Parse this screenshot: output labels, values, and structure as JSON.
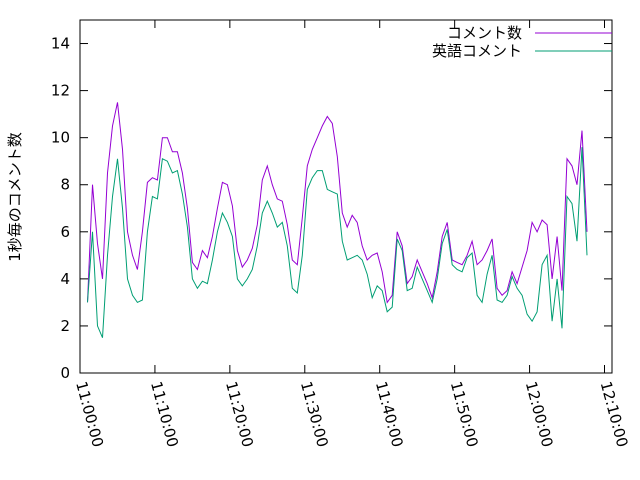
{
  "chart_data": {
    "type": "line",
    "ylabel": "1秒毎のコメント数",
    "x": [
      "11:01:00",
      "11:01:40",
      "11:02:20",
      "11:03:00",
      "11:03:40",
      "11:04:20",
      "11:05:00",
      "11:05:40",
      "11:06:20",
      "11:07:00",
      "11:07:40",
      "11:08:20",
      "11:09:00",
      "11:09:40",
      "11:10:20",
      "11:11:00",
      "11:11:40",
      "11:12:20",
      "11:13:00",
      "11:13:40",
      "11:14:20",
      "11:15:00",
      "11:15:40",
      "11:16:20",
      "11:17:00",
      "11:17:40",
      "11:18:20",
      "11:19:00",
      "11:19:40",
      "11:20:20",
      "11:21:00",
      "11:21:40",
      "11:22:20",
      "11:23:00",
      "11:23:40",
      "11:24:20",
      "11:25:00",
      "11:25:40",
      "11:26:20",
      "11:27:00",
      "11:27:40",
      "11:28:20",
      "11:29:00",
      "11:29:40",
      "11:30:20",
      "11:31:00",
      "11:31:40",
      "11:32:20",
      "11:33:00",
      "11:33:40",
      "11:34:20",
      "11:35:00",
      "11:35:40",
      "11:36:20",
      "11:37:00",
      "11:37:40",
      "11:38:20",
      "11:39:00",
      "11:39:40",
      "11:40:20",
      "11:41:00",
      "11:41:40",
      "11:42:20",
      "11:43:00",
      "11:43:40",
      "11:44:20",
      "11:45:00",
      "11:45:40",
      "11:46:20",
      "11:47:00",
      "11:47:40",
      "11:48:20",
      "11:49:00",
      "11:49:40",
      "11:50:20",
      "11:51:00",
      "11:51:40",
      "11:52:20",
      "11:53:00",
      "11:53:40",
      "11:54:20",
      "11:55:00",
      "11:55:40",
      "11:56:20",
      "11:57:00",
      "11:57:40",
      "11:58:20",
      "11:59:00",
      "11:59:40",
      "12:00:20",
      "12:01:00",
      "12:01:40",
      "12:02:20",
      "12:03:00",
      "12:03:40",
      "12:04:20",
      "12:05:00",
      "12:05:40",
      "12:06:20",
      "12:07:00",
      "12:07:40"
    ],
    "series": [
      {
        "name": "コメント数",
        "color": "#9400d3",
        "values": [
          3.0,
          8.0,
          5.5,
          4.0,
          8.5,
          10.5,
          11.5,
          9.5,
          6.0,
          5.0,
          4.4,
          6.0,
          8.1,
          8.3,
          8.2,
          10.0,
          10.0,
          9.4,
          9.4,
          8.5,
          7.0,
          4.7,
          4.4,
          5.2,
          4.9,
          5.8,
          7.0,
          8.1,
          8.0,
          7.1,
          5.2,
          4.5,
          4.8,
          5.3,
          6.3,
          8.2,
          8.8,
          8.0,
          7.4,
          7.3,
          6.3,
          4.8,
          4.6,
          6.6,
          8.8,
          9.5,
          10.0,
          10.5,
          10.9,
          10.6,
          9.2,
          6.8,
          6.2,
          6.7,
          6.4,
          5.4,
          4.8,
          5.0,
          5.1,
          4.3,
          3.0,
          3.3,
          6.0,
          5.4,
          3.8,
          4.1,
          4.8,
          4.3,
          3.8,
          3.2,
          4.3,
          5.8,
          6.4,
          4.8,
          4.7,
          4.6,
          5.0,
          5.6,
          4.6,
          4.8,
          5.2,
          5.7,
          3.6,
          3.3,
          3.5,
          4.3,
          3.8,
          4.5,
          5.2,
          6.4,
          6.0,
          6.5,
          6.3,
          4.0,
          5.8,
          3.5,
          9.1,
          8.8,
          8.0,
          10.3,
          6.0
        ]
      },
      {
        "name": "英語コメント",
        "color": "#009e73",
        "values": [
          3.0,
          6.0,
          2.0,
          1.5,
          5.0,
          7.5,
          9.1,
          7.0,
          4.0,
          3.3,
          3.0,
          3.1,
          6.0,
          7.5,
          7.4,
          9.1,
          9.0,
          8.5,
          8.6,
          7.6,
          6.2,
          4.0,
          3.6,
          3.9,
          3.8,
          4.8,
          6.0,
          6.8,
          6.4,
          5.8,
          4.0,
          3.7,
          4.0,
          4.4,
          5.4,
          6.8,
          7.3,
          6.8,
          6.2,
          6.4,
          5.4,
          3.6,
          3.4,
          5.0,
          7.8,
          8.3,
          8.6,
          8.6,
          7.8,
          7.7,
          7.6,
          5.6,
          4.8,
          4.9,
          5.0,
          4.8,
          4.2,
          3.2,
          3.7,
          3.5,
          2.6,
          2.8,
          5.7,
          5.2,
          3.5,
          3.6,
          4.5,
          4.0,
          3.5,
          3.0,
          4.0,
          5.5,
          6.1,
          4.6,
          4.4,
          4.3,
          4.9,
          5.1,
          3.3,
          3.0,
          4.2,
          5.0,
          3.1,
          3.0,
          3.3,
          4.1,
          3.6,
          3.3,
          2.5,
          2.2,
          2.6,
          4.6,
          5.0,
          2.2,
          4.0,
          1.9,
          7.5,
          7.2,
          5.6,
          9.6,
          5.0
        ]
      }
    ],
    "xlim": [
      "11:00:00",
      "12:11:00"
    ],
    "xticks": [
      "11:00:00",
      "11:10:00",
      "11:20:00",
      "11:30:00",
      "11:40:00",
      "11:50:00",
      "12:00:00",
      "12:10:00"
    ],
    "ylim": [
      0,
      15
    ],
    "yticks": [
      0,
      2,
      4,
      6,
      8,
      10,
      12,
      14
    ],
    "legend": "top-right",
    "grid": false
  }
}
